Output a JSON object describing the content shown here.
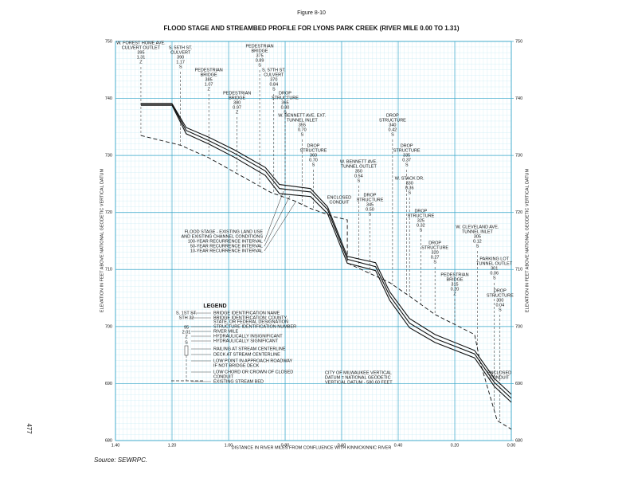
{
  "figure_label": "Figure 8-10",
  "page_number": "477",
  "source": "Source:  SEWRPC.",
  "chart_data": {
    "type": "line",
    "title": "FLOOD STAGE AND STREAMBED PROFILE FOR LYONS PARK CREEK (RIVER MILE 0.00 TO 1.31)",
    "x_label": "DISTANCE IN RIVER MILES FROM CONFLUENCE WITH KINNICKINNIC RIVER",
    "y_label": "ELEVATION IN FEET ABOVE NATIONAL GEODETIC VERTICAL DATUM",
    "y2_label": "ELEVATION IN FEET ABOVE NATIONAL GEODETIC VERTICAL DATUM",
    "xlim": [
      1.4,
      0.0
    ],
    "xticks": [
      {
        "value": 1.4,
        "label": "1.40"
      },
      {
        "value": 1.2,
        "label": "1.20"
      },
      {
        "value": 1.0,
        "label": "1.00"
      },
      {
        "value": 0.8,
        "label": "0.80"
      },
      {
        "value": 0.6,
        "label": "0.60"
      },
      {
        "value": 0.4,
        "label": "0.40"
      },
      {
        "value": 0.2,
        "label": "0.20"
      },
      {
        "value": 0.0,
        "label": "0.00"
      }
    ],
    "ylim": [
      680,
      750
    ],
    "yticks": [
      680,
      690,
      700,
      710,
      720,
      730,
      740,
      750
    ],
    "y2lim": [
      680,
      750
    ],
    "y2ticks": [
      680,
      690,
      700,
      710,
      720,
      730,
      740,
      750
    ],
    "grid": true,
    "flood_legend_title": [
      "FLOOD STAGE - EXISTING LAND USE",
      "AND EXISTING CHANNEL CONDITIONS"
    ],
    "series": [
      {
        "name": "100-YEAR RECURRENCE INTERVAL",
        "color": "#111111",
        "style": "solid",
        "x": [
          1.31,
          1.2,
          1.15,
          1.07,
          0.98,
          0.87,
          0.82,
          0.71,
          0.65,
          0.58,
          0.48,
          0.43,
          0.36,
          0.27,
          0.13,
          0.06,
          0.0
        ],
        "values": [
          739.1,
          739.1,
          734.9,
          733.2,
          731.0,
          727.9,
          724.9,
          724.2,
          721.0,
          712.3,
          711.2,
          706.1,
          701.4,
          698.6,
          695.8,
          690.9,
          688.1
        ]
      },
      {
        "name": "50-YEAR RECURRENCE INTERVAL",
        "color": "#111111",
        "style": "solid",
        "x": [
          1.31,
          1.2,
          1.15,
          1.07,
          0.98,
          0.87,
          0.82,
          0.71,
          0.65,
          0.58,
          0.48,
          0.43,
          0.36,
          0.27,
          0.13,
          0.06,
          0.0
        ],
        "values": [
          739.0,
          739.0,
          734.4,
          732.6,
          730.4,
          727.3,
          724.2,
          723.6,
          720.5,
          711.8,
          710.5,
          705.4,
          700.6,
          697.9,
          695.2,
          690.2,
          687.4
        ]
      },
      {
        "name": "10-YEAR RECURRENCE INTERVAL",
        "color": "#111111",
        "style": "solid",
        "x": [
          1.31,
          1.2,
          1.15,
          1.07,
          0.98,
          0.87,
          0.82,
          0.71,
          0.65,
          0.58,
          0.48,
          0.43,
          0.36,
          0.27,
          0.13,
          0.06,
          0.0
        ],
        "values": [
          738.8,
          738.8,
          733.8,
          732.0,
          729.7,
          726.5,
          723.3,
          722.8,
          719.8,
          711.1,
          709.8,
          704.6,
          699.8,
          697.2,
          694.5,
          689.5,
          686.7
        ]
      },
      {
        "name": "EXISTING STREAM BED",
        "color": "#111111",
        "style": "dashed",
        "x": [
          1.31,
          1.17,
          1.07,
          0.98,
          0.85,
          0.77,
          0.71,
          0.63,
          0.58,
          0.58,
          0.57,
          0.43,
          0.36,
          0.27,
          0.13,
          0.11,
          0.05,
          0.0
        ],
        "values": [
          733.5,
          731.8,
          729.6,
          727.1,
          723.5,
          722.1,
          720.7,
          719.3,
          718.7,
          711.2,
          710.9,
          707.7,
          705.3,
          702.1,
          698.6,
          693.7,
          683.5,
          682.0
        ]
      }
    ],
    "annotations": [
      {
        "x": 1.31,
        "lines": [
          "W. FOREST HOME AVE.",
          "CULVERT OUTLET",
          "395",
          "1.31",
          "Z"
        ]
      },
      {
        "x": 1.17,
        "lines": [
          "S. 55TH ST.",
          "CULVERT",
          "390",
          "1.17",
          "S"
        ]
      },
      {
        "x": 1.07,
        "lines": [
          "PEDESTRIAN",
          "BRIDGE",
          "385",
          "1.07",
          "Z"
        ]
      },
      {
        "x": 0.97,
        "lines": [
          "PEDESTRIAN",
          "BRIDGE",
          "380",
          "0.97",
          "Z"
        ]
      },
      {
        "x": 0.89,
        "lines": [
          "PEDESTRIAN",
          "BRIDGE",
          "375",
          "0.89",
          "S"
        ]
      },
      {
        "x": 0.84,
        "lines": [
          "S. 57TH ST.",
          "CULVERT",
          "370",
          "0.84",
          "S"
        ]
      },
      {
        "x": 0.8,
        "lines": [
          "DROP",
          "STRUCTURE",
          "365",
          "0.80",
          "S"
        ]
      },
      {
        "x": 0.74,
        "lines": [
          "W. BENNETT AVE. EXT.",
          "TUNNEL INLET",
          "355",
          "0.70",
          "S"
        ]
      },
      {
        "x": 0.7,
        "lines": [
          "DROP",
          "STRUCTURE",
          "360",
          "0.70",
          "S"
        ]
      },
      {
        "x": 0.42,
        "lines": [
          "DROP",
          "STRUCTURE",
          "340",
          "0.42",
          "S"
        ]
      },
      {
        "x": 0.37,
        "lines": [
          "DROP",
          "STRUCTURE",
          "335",
          "0.37",
          "S"
        ]
      },
      {
        "x": 0.54,
        "lines": [
          "W. BENNETT AVE.",
          "TUNNEL OUTLET",
          "350",
          "0.54",
          "S"
        ]
      },
      {
        "x": 0.5,
        "lines": [
          "DROP",
          "STRUCTURE",
          "345",
          "0.50",
          "S"
        ]
      },
      {
        "x": 0.36,
        "lines": [
          "W. STACK DR.",
          "330",
          "0.36",
          "S"
        ]
      },
      {
        "x": 0.32,
        "lines": [
          "DROP",
          "STRUCTURE",
          "325",
          "0.32",
          "S"
        ]
      },
      {
        "x": 0.27,
        "lines": [
          "DROP",
          "STRUCTURE",
          "320",
          "0.27",
          "S"
        ]
      },
      {
        "x": 0.12,
        "lines": [
          "W. CLEVELAND AVE.",
          "TUNNEL INLET",
          "305",
          "0.12",
          "S"
        ]
      },
      {
        "x": 0.2,
        "lines": [
          "PEDESTRIAN",
          "BRIDGE",
          "315",
          "0.20",
          "Z"
        ]
      },
      {
        "x": 0.06,
        "lines": [
          "PARKING LOT",
          "TUNNEL OUTLET",
          "301",
          "0.06",
          "S"
        ]
      },
      {
        "x": 0.04,
        "lines": [
          "DROP",
          "STRUCTURE",
          "300",
          "0.04",
          "S"
        ]
      }
    ],
    "notes": {
      "enclosed_conduit_1": [
        "ENCLOSED",
        "CONDUIT"
      ],
      "enclosed_conduit_2": [
        "ENCLOSED",
        "CONDUIT"
      ],
      "datum": [
        "CITY OF MILWAUKEE  VERTICAL",
        "DATUM = NATIONAL GEODETIC",
        "VERTICAL DATUM - 580.60 FEET"
      ]
    },
    "structure_legend": {
      "title": "LEGEND",
      "example": [
        "S. 1ST ST.",
        "STH 32",
        "95",
        "2.01",
        "Z",
        "S"
      ],
      "items": [
        "BRIDGE IDENTIFICATION NAME",
        "BRIDGE IDENTIFICATION: COUNTY,",
        "STATE, OR FEDERAL DESIGNATION",
        "STRUCTURE IDENTIFICATION NUMBER",
        "RIVER MILE",
        "HYDRAULICALLY INSIGNIFICANT",
        "HYDRAULICALLY SIGNIFICANT",
        "RAILING AT STREAM CENTERLINE",
        "DECK AT STREAM CENTERLINE",
        "LOW POINT IN APPROACH ROADWAY",
        "IF NOT BRIDGE DECK",
        "LOW CHORD OR CROWN OF CLOSED",
        "CONDUIT",
        "EXISTING STREAM BED"
      ]
    }
  }
}
